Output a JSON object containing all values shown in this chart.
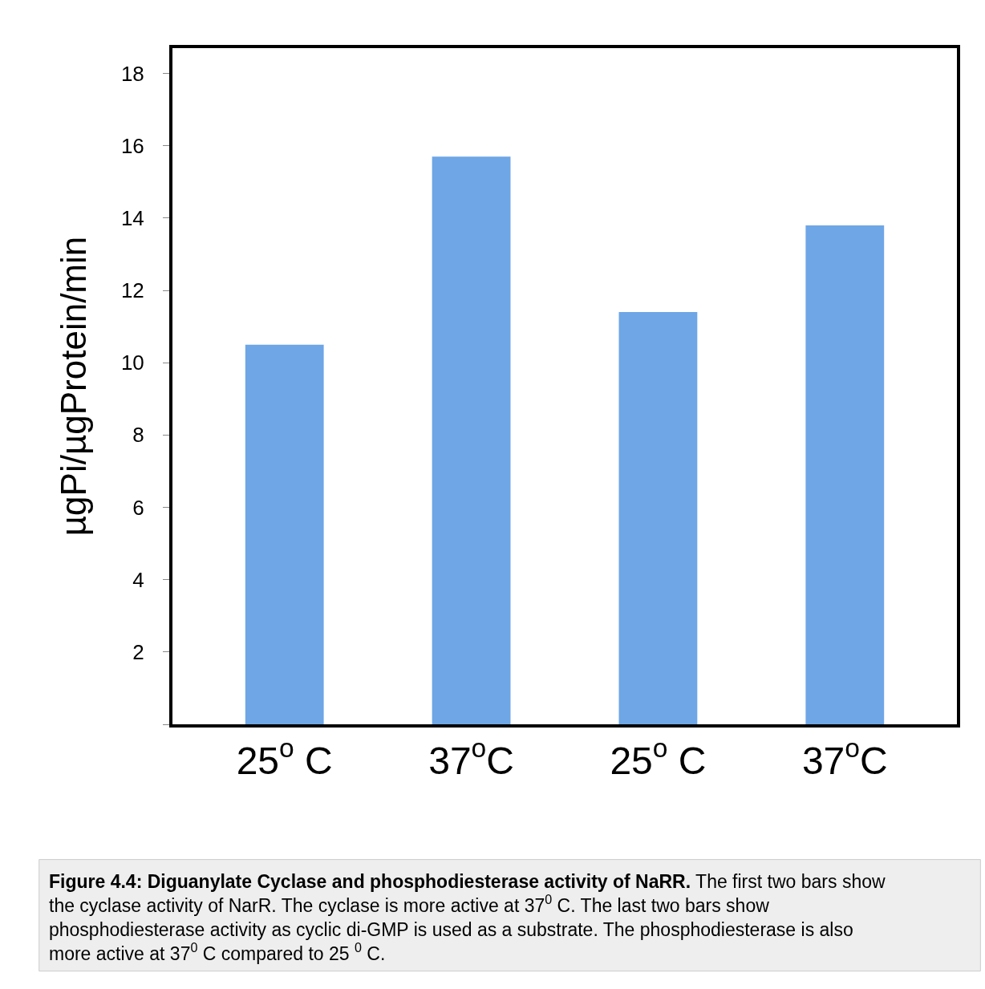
{
  "chart_data": {
    "type": "bar",
    "categories": [
      "25$^{o}$ C",
      "37$^{o}$C",
      "25$^{o}$ C",
      "37$^{o}$C"
    ],
    "values": [
      10.5,
      15.7,
      11.4,
      13.8
    ],
    "color": "#6ea6e6",
    "ylabel": "µgPi/µgProtein/min",
    "ylim": [
      0,
      18.7
    ],
    "yticks": [
      {
        "value": 0,
        "label": null
      },
      2,
      4,
      6,
      8,
      10,
      12,
      14,
      16,
      18
    ],
    "grid": false,
    "legend": false,
    "annotations": [
      "Figure 4.4: Diguanylate Cyclase and phosphodiesterase activity of NaRR.",
      "The first two bars show the cyclase activity of NarR. The cyclase is more active at 37$^{0}$ C. The last two bars show phosphodiesterase activity as cyclic di-GMP is used as a substrate. The phosphodiesterase is also more active at 37$^{0}$ C compared to 25 $^{0}$ C."
    ]
  }
}
